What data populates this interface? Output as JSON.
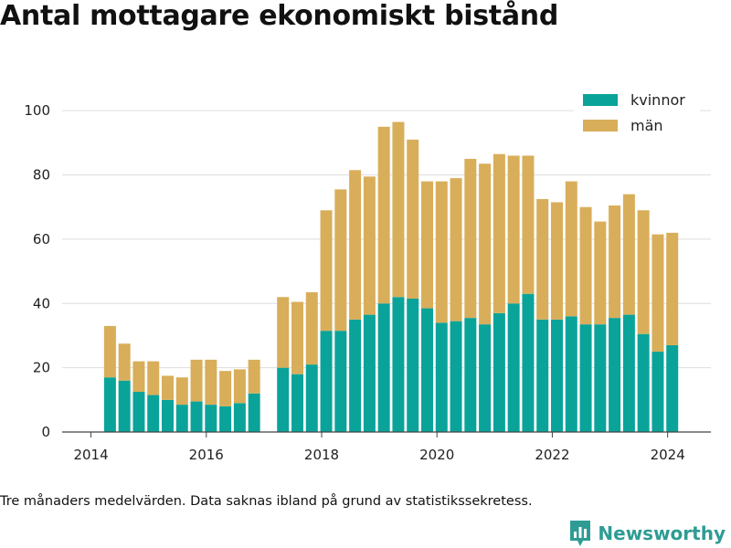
{
  "title": "Antal mottagare ekonomiskt bistånd",
  "note": "Tre månaders medelvärden. Data saknas ibland på grund av statistikssekretess.",
  "brand": {
    "name": "Newsworthy",
    "icon": "newsworthy-logo-icon"
  },
  "colors": {
    "kvinnor": "#0aa39a",
    "man": "#d8ae5a",
    "grid": "#dddddd",
    "axis": "#444444"
  },
  "chart_data": {
    "type": "bar",
    "stacked": true,
    "grid": true,
    "legend_position": "top-right",
    "xlim": [
      2013.5,
      2024.75
    ],
    "ylim": [
      0,
      110
    ],
    "x_ticks": [
      2014,
      2016,
      2018,
      2020,
      2022,
      2024
    ],
    "y_ticks": [
      0,
      20,
      40,
      60,
      80,
      100
    ],
    "x": [
      2014.33,
      2014.58,
      2014.83,
      2015.08,
      2015.33,
      2015.58,
      2015.83,
      2016.08,
      2016.33,
      2016.58,
      2016.83,
      2017.33,
      2017.58,
      2017.83,
      2018.08,
      2018.33,
      2018.58,
      2018.83,
      2019.08,
      2019.33,
      2019.58,
      2019.83,
      2020.08,
      2020.33,
      2020.58,
      2020.83,
      2021.08,
      2021.33,
      2021.58,
      2021.83,
      2022.08,
      2022.33,
      2022.58,
      2022.83,
      2023.08,
      2023.33,
      2023.58,
      2023.83,
      2024.08
    ],
    "series": [
      {
        "name": "kvinnor",
        "values": [
          17,
          16,
          12.5,
          11.5,
          10,
          8.5,
          9.5,
          8.5,
          8,
          9,
          12,
          20,
          18,
          21,
          31.5,
          31.5,
          35,
          36.5,
          40,
          42,
          41.5,
          38.5,
          34,
          34.5,
          35.5,
          33.5,
          37,
          40,
          43,
          35,
          35,
          36,
          33.5,
          33.5,
          35.5,
          36.5,
          30.5,
          25,
          27
        ]
      },
      {
        "name": "män",
        "values": [
          16,
          11.5,
          9.5,
          10.5,
          7.5,
          8.5,
          13,
          14,
          11,
          10.5,
          10.5,
          22,
          22.5,
          22.5,
          37.5,
          44,
          46.5,
          43,
          55,
          54.5,
          49.5,
          39.5,
          44,
          44.5,
          49.5,
          50,
          49.5,
          46,
          43,
          37.5,
          36.5,
          42,
          36.5,
          32,
          35,
          37.5,
          38.5,
          36.5,
          35
        ]
      }
    ]
  }
}
